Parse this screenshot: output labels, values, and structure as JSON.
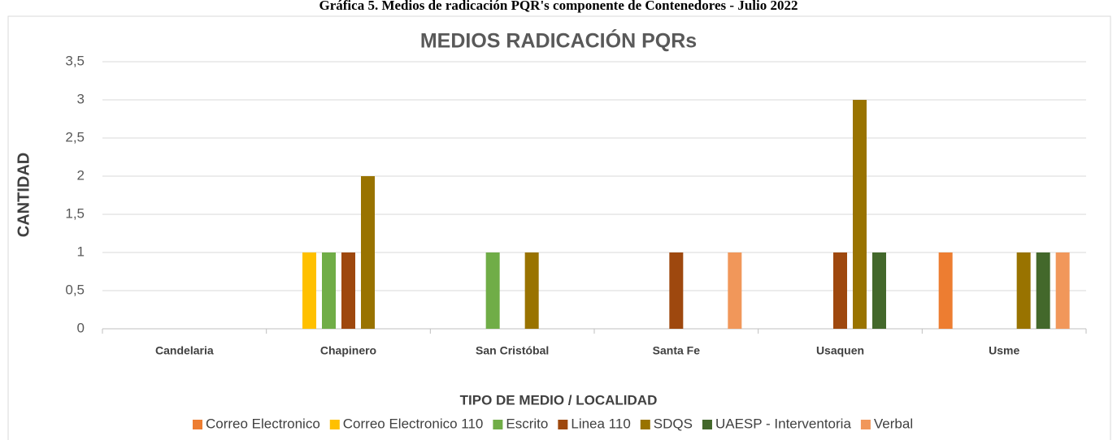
{
  "caption": "Gráfica 5. Medios de radicación PQR's componente de Contenedores - Julio 2022",
  "chart_data": {
    "type": "bar",
    "title": "MEDIOS RADICACIÓN PQRs",
    "x_label": "TIPO DE MEDIO / LOCALIDAD",
    "y_label": "CANTIDAD",
    "categories": [
      "Candelaria",
      "Chapinero",
      "San Cristóbal",
      "Santa Fe",
      "Usaquen",
      "Usme"
    ],
    "series": [
      {
        "name": "Correo Electronico",
        "color": "#ED7D31",
        "values": [
          0,
          0,
          0,
          0,
          0,
          1
        ]
      },
      {
        "name": "Correo Electronico 110",
        "color": "#FFC000",
        "values": [
          0,
          1,
          0,
          0,
          0,
          0
        ]
      },
      {
        "name": "Escrito",
        "color": "#70AD47",
        "values": [
          0,
          1,
          1,
          0,
          0,
          0
        ]
      },
      {
        "name": "Linea 110",
        "color": "#9E480E",
        "values": [
          0,
          1,
          0,
          1,
          1,
          0
        ]
      },
      {
        "name": "SDQS",
        "color": "#997300",
        "values": [
          0,
          2,
          1,
          0,
          3,
          1
        ]
      },
      {
        "name": "UAESP - Interventoria",
        "color": "#43682B",
        "values": [
          0,
          0,
          0,
          0,
          1,
          1
        ]
      },
      {
        "name": "Verbal",
        "color": "#F1975A",
        "values": [
          0,
          0,
          0,
          1,
          0,
          1
        ]
      }
    ],
    "ylim": [
      0,
      3.5
    ],
    "yticks": [
      0,
      {
        "value": 0.5,
        "label": "0,5"
      },
      1,
      {
        "value": 1.5,
        "label": "1,5"
      },
      2,
      {
        "value": 2.5,
        "label": "2,5"
      },
      3,
      {
        "value": 3.5,
        "label": "3,5"
      }
    ],
    "grid": true,
    "legend": "bottom"
  }
}
